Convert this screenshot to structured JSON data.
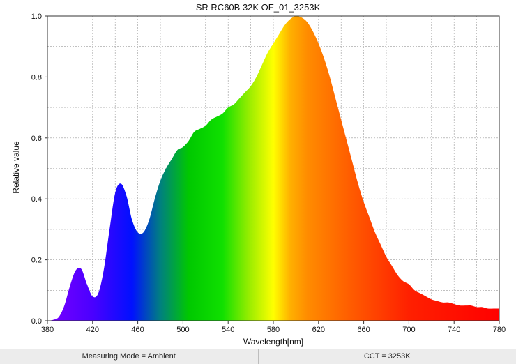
{
  "chart_data": {
    "type": "area",
    "title": "SR RC60B 32K OF_01_3253K",
    "xlabel": "Wavelength[nm]",
    "ylabel": "Relative value",
    "xlim": [
      380,
      780
    ],
    "ylim": [
      0,
      1.0
    ],
    "xticks": [
      "380",
      "420",
      "460",
      "500",
      "540",
      "580",
      "620",
      "660",
      "700",
      "740",
      "780"
    ],
    "yticks": [
      "0.0",
      "0.2",
      "0.4",
      "0.6",
      "0.8",
      "1.0"
    ],
    "grid": true,
    "fill": "visible-spectrum gradient",
    "x": [
      380,
      385,
      390,
      395,
      400,
      405,
      410,
      415,
      420,
      425,
      430,
      435,
      440,
      445,
      450,
      455,
      460,
      465,
      470,
      475,
      480,
      485,
      490,
      495,
      500,
      505,
      510,
      515,
      520,
      525,
      530,
      535,
      540,
      545,
      550,
      555,
      560,
      565,
      570,
      575,
      580,
      585,
      590,
      595,
      600,
      605,
      610,
      615,
      620,
      625,
      630,
      635,
      640,
      645,
      650,
      655,
      660,
      665,
      670,
      675,
      680,
      685,
      690,
      695,
      700,
      705,
      710,
      715,
      720,
      725,
      730,
      735,
      740,
      745,
      750,
      755,
      760,
      765,
      770,
      775,
      780
    ],
    "y": [
      0.0,
      0.003,
      0.012,
      0.05,
      0.115,
      0.165,
      0.17,
      0.12,
      0.08,
      0.09,
      0.17,
      0.3,
      0.42,
      0.45,
      0.41,
      0.33,
      0.29,
      0.29,
      0.33,
      0.4,
      0.46,
      0.5,
      0.53,
      0.56,
      0.57,
      0.59,
      0.62,
      0.63,
      0.64,
      0.66,
      0.67,
      0.68,
      0.7,
      0.71,
      0.73,
      0.75,
      0.77,
      0.8,
      0.84,
      0.88,
      0.91,
      0.94,
      0.97,
      0.99,
      1.0,
      0.995,
      0.98,
      0.95,
      0.91,
      0.86,
      0.8,
      0.73,
      0.66,
      0.59,
      0.52,
      0.45,
      0.39,
      0.34,
      0.29,
      0.25,
      0.21,
      0.18,
      0.15,
      0.13,
      0.12,
      0.1,
      0.09,
      0.08,
      0.07,
      0.065,
      0.06,
      0.06,
      0.055,
      0.05,
      0.05,
      0.05,
      0.045,
      0.045,
      0.04,
      0.04,
      0.04
    ]
  },
  "footer": {
    "measuring_mode": "Measuring Mode = Ambient",
    "cct": "CCT = 3253K"
  },
  "colors": {
    "spectrum_stops": [
      {
        "nm": 380,
        "color": "#7a00ff"
      },
      {
        "nm": 420,
        "color": "#4a00ff"
      },
      {
        "nm": 455,
        "color": "#0010ff"
      },
      {
        "nm": 480,
        "color": "#008080"
      },
      {
        "nm": 505,
        "color": "#00c800"
      },
      {
        "nm": 535,
        "color": "#10e000"
      },
      {
        "nm": 560,
        "color": "#a0ee00"
      },
      {
        "nm": 580,
        "color": "#ffff00"
      },
      {
        "nm": 595,
        "color": "#ffb000"
      },
      {
        "nm": 610,
        "color": "#ff8c00"
      },
      {
        "nm": 650,
        "color": "#ff5a00"
      },
      {
        "nm": 700,
        "color": "#ff2000"
      },
      {
        "nm": 780,
        "color": "#ff0000"
      }
    ]
  }
}
